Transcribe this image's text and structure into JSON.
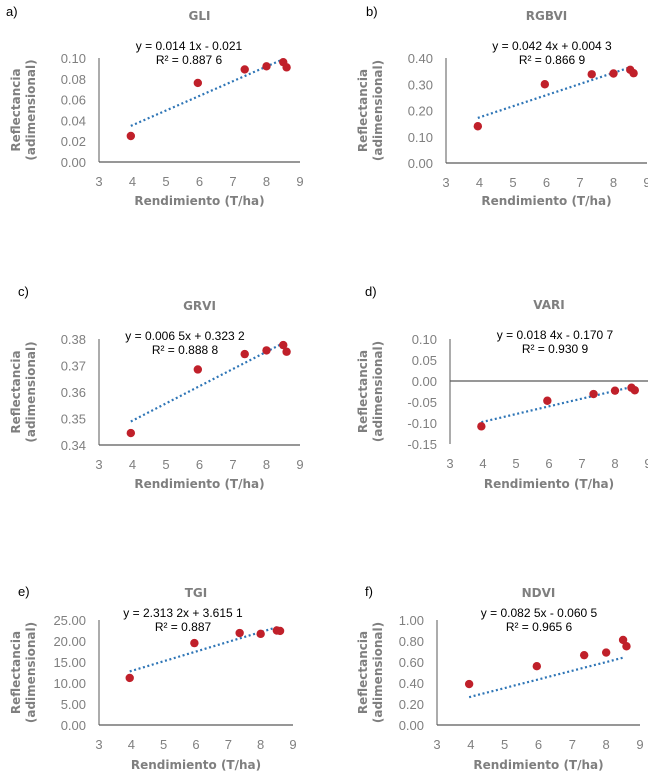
{
  "colors": {
    "marker": "#c0202a",
    "trendline": "#2e75b6",
    "axis": "#7f7f7f",
    "text_gray": "#7f7f7f"
  },
  "chart_data": [
    {
      "type": "scatter",
      "letter": "a)",
      "title": "GLI",
      "xlabel": "Rendimiento (T/ha)",
      "ylabel": [
        "Reflectancia",
        "(adimensional)"
      ],
      "xlim": [
        3,
        9
      ],
      "ylim": [
        0,
        0.1
      ],
      "xticks": [
        "3",
        "4",
        "5",
        "6",
        "7",
        "8",
        "9"
      ],
      "yticks": [
        "0.00",
        "0.02",
        "0.04",
        "0.06",
        "0.08",
        "0.10"
      ],
      "x": [
        3.95,
        5.95,
        7.35,
        8.0,
        8.5,
        8.6
      ],
      "y": [
        0.025,
        0.076,
        0.089,
        0.092,
        0.096,
        0.091
      ],
      "trend": {
        "slope": 0.0141,
        "intercept": -0.021
      },
      "equation": "y = 0.014 1x - 0.021",
      "r2": "R² = 0.887 6",
      "zero_line": false
    },
    {
      "type": "scatter",
      "letter": "b)",
      "title": "RGBVI",
      "xlabel": "Rendimiento (T/ha)",
      "ylabel": [
        "Reflectancia",
        "(adimensional)"
      ],
      "xlim": [
        3,
        9
      ],
      "ylim": [
        0,
        0.4
      ],
      "xticks": [
        "3",
        "4",
        "5",
        "6",
        "7",
        "8",
        "9"
      ],
      "yticks": [
        "0.00",
        "0.10",
        "0.20",
        "0.30",
        "0.40"
      ],
      "x": [
        3.95,
        5.95,
        7.35,
        8.0,
        8.5,
        8.6
      ],
      "y": [
        0.14,
        0.3,
        0.338,
        0.341,
        0.355,
        0.342
      ],
      "trend": {
        "slope": 0.0424,
        "intercept": 0.0043
      },
      "equation": "y = 0.042 4x + 0.004 3",
      "r2": "R² = 0.866 9",
      "zero_line": false
    },
    {
      "type": "scatter",
      "letter": "c)",
      "title": "GRVI",
      "xlabel": "Rendimiento (T/ha)",
      "ylabel": [
        "Reflectancia",
        "(adimensional)"
      ],
      "xlim": [
        3,
        9
      ],
      "ylim": [
        0.34,
        0.38
      ],
      "xticks": [
        "3",
        "4",
        "5",
        "6",
        "7",
        "8",
        "9"
      ],
      "yticks": [
        "0.34",
        "0.35",
        "0.36",
        "0.37",
        "0.38"
      ],
      "x": [
        3.95,
        5.95,
        7.35,
        8.0,
        8.5,
        8.6
      ],
      "y": [
        0.3445,
        0.3685,
        0.3743,
        0.3757,
        0.3777,
        0.3752
      ],
      "trend": {
        "slope": 0.0065,
        "intercept": 0.3232
      },
      "equation": "y = 0.006 5x + 0.323 2",
      "r2": "R² = 0.888 8",
      "zero_line": false
    },
    {
      "type": "scatter",
      "letter": "d)",
      "title": "VARI",
      "xlabel": "Rendimiento (T/ha)",
      "ylabel": [
        "Reflectancia",
        "(adimensional)"
      ],
      "xlim": [
        3,
        9
      ],
      "ylim": [
        -0.15,
        0.1
      ],
      "xticks": [
        "3",
        "4",
        "5",
        "6",
        "7",
        "8",
        "9"
      ],
      "yticks": [
        "-0.15",
        "-0.10",
        "-0.05",
        "0.00",
        "0.05",
        "0.10"
      ],
      "x": [
        3.95,
        5.95,
        7.35,
        8.0,
        8.5,
        8.6
      ],
      "y": [
        -0.108,
        -0.047,
        -0.031,
        -0.023,
        -0.016,
        -0.022
      ],
      "trend": {
        "slope": 0.0184,
        "intercept": -0.1707
      },
      "equation": "y = 0.018 4x - 0.170 7",
      "r2": "R² = 0.930 9",
      "zero_line": true
    },
    {
      "type": "scatter",
      "letter": "e)",
      "title": "TGI",
      "xlabel": "Rendimiento (T/ha)",
      "ylabel": [
        "Reflectancia",
        "(adimensional)"
      ],
      "xlim": [
        3,
        9
      ],
      "ylim": [
        0,
        25
      ],
      "xticks": [
        "3",
        "4",
        "5",
        "6",
        "7",
        "8",
        "9"
      ],
      "yticks": [
        "0.00",
        "5.00",
        "10.00",
        "15.00",
        "20.00",
        "25.00"
      ],
      "x": [
        3.95,
        5.95,
        7.35,
        8.0,
        8.5,
        8.6
      ],
      "y": [
        11.2,
        19.5,
        21.9,
        21.7,
        22.5,
        22.4
      ],
      "trend": {
        "slope": 2.3132,
        "intercept": 3.6151
      },
      "equation": "y = 2.313 2x + 3.615 1",
      "r2": "R² = 0.887",
      "zero_line": false
    },
    {
      "type": "scatter",
      "letter": "f)",
      "title": "NDVI",
      "xlabel": "Rendimiento (T/ha)",
      "ylabel": [
        "Reflectancia",
        "(adimensional)"
      ],
      "xlim": [
        3,
        9
      ],
      "ylim": [
        0,
        1
      ],
      "xticks": [
        "3",
        "4",
        "5",
        "6",
        "7",
        "8",
        "9"
      ],
      "yticks": [
        "0.00",
        "0.20",
        "0.40",
        "0.60",
        "0.80",
        "1.00"
      ],
      "x": [
        3.95,
        5.95,
        7.35,
        8.0,
        8.5,
        8.6
      ],
      "y": [
        0.39,
        0.56,
        0.665,
        0.69,
        0.81,
        0.75
      ],
      "trend": {
        "slope": 0.0825,
        "intercept": -0.0605
      },
      "equation": "y = 0.082 5x - 0.060 5",
      "r2": "R² = 0.965 6",
      "zero_line": false
    }
  ]
}
